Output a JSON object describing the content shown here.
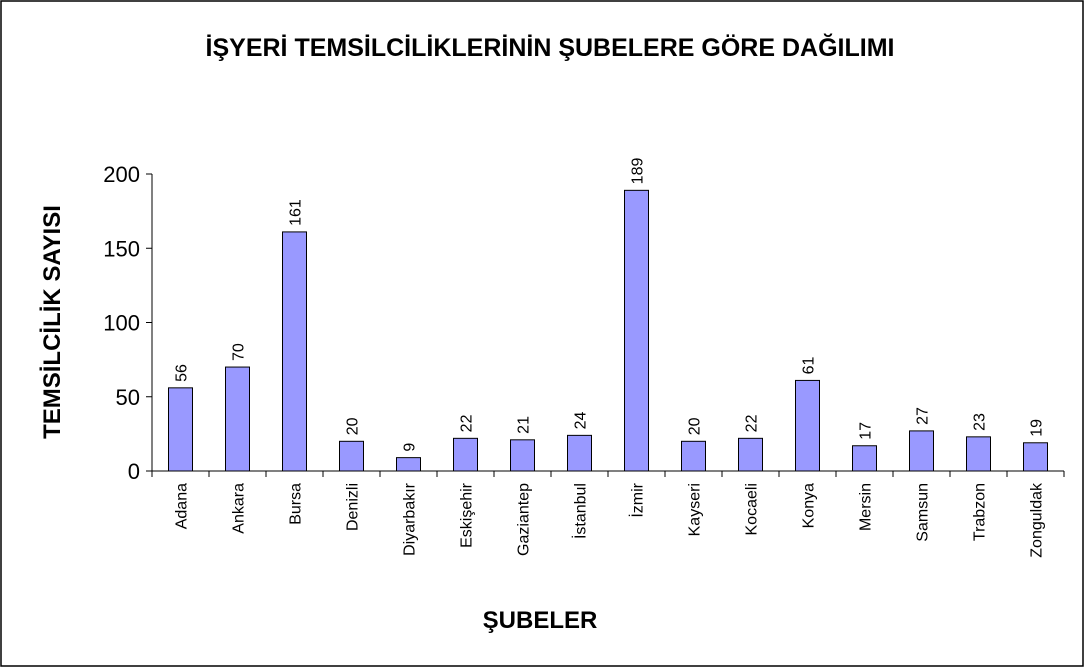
{
  "chart_data": {
    "type": "bar",
    "title": "İŞYERİ TEMSİLCİLİKLERİNİN ŞUBELERE GÖRE DAĞILIMI",
    "x_label": "ŞUBELER",
    "y_label": "TEMSİLCİLİK SAYISI",
    "categories": [
      "Adana",
      "Ankara",
      "Bursa",
      "Denizli",
      "Diyarbakır",
      "Eskişehir",
      "Gaziantep",
      "İstanbul",
      "İzmir",
      "Kayseri",
      "Kocaeli",
      "Konya",
      "Mersin",
      "Samsun",
      "Trabzon",
      "Zonguldak"
    ],
    "values": [
      56,
      70,
      161,
      20,
      9,
      22,
      21,
      24,
      189,
      20,
      22,
      61,
      17,
      27,
      23,
      19
    ],
    "color": "#9999ff",
    "ylim": [
      0,
      200
    ],
    "yticks": [
      0,
      50,
      100,
      150,
      200
    ],
    "grid": false
  }
}
